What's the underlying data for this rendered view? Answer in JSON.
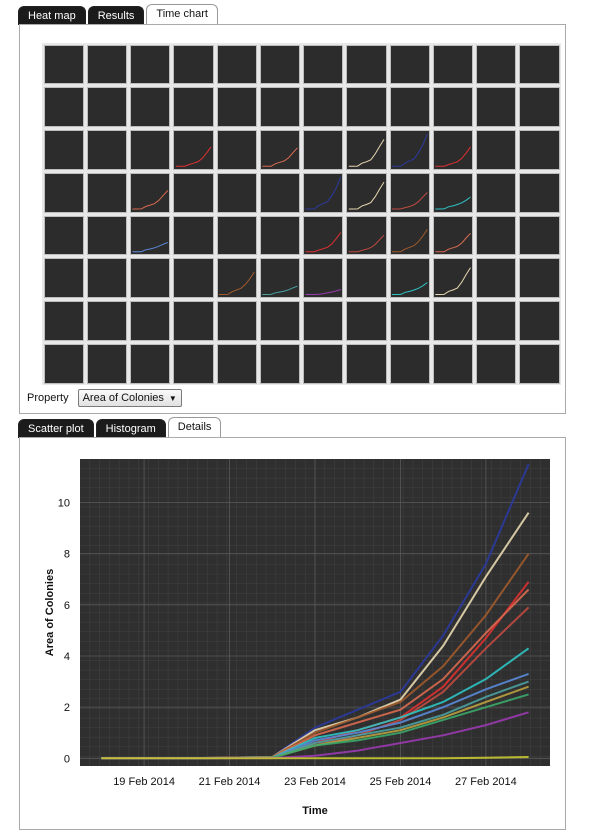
{
  "top_tabs": [
    {
      "label": "Heat map",
      "style": "dark"
    },
    {
      "label": "Results",
      "style": "dark"
    },
    {
      "label": "Time chart",
      "style": "light",
      "active": true
    }
  ],
  "property": {
    "label": "Property",
    "selected": "Area of Colonies"
  },
  "heatmap": {
    "rows": 8,
    "cols": 12,
    "well_color": "#2c2c2c"
  },
  "bottom_tabs": [
    {
      "label": "Scatter plot",
      "style": "dark"
    },
    {
      "label": "Histogram",
      "style": "dark"
    },
    {
      "label": "Details",
      "style": "light",
      "active": true
    }
  ],
  "chart_data": {
    "type": "line",
    "xlabel": "Time",
    "ylabel": "Area of Colonies",
    "x_ticks": [
      "19 Feb 2014",
      "21 Feb 2014",
      "23 Feb 2014",
      "25 Feb 2014",
      "27 Feb 2014"
    ],
    "y_ticks": [
      "0",
      "2",
      "4",
      "6",
      "8",
      "10"
    ],
    "ylim": [
      -0.3,
      11.7
    ],
    "xlim": [
      "17 Feb 2014 12:00",
      "28 Feb 2014 12:00"
    ],
    "grid": true,
    "background": "#2f2f2f",
    "x": [
      "18 Feb 2014",
      "20 Feb 2014",
      "22 Feb 2014",
      "23 Feb 2014",
      "24 Feb 2014",
      "25 Feb 2014",
      "26 Feb 2014",
      "27 Feb 2014",
      "28 Feb 2014"
    ],
    "series": [
      {
        "color": "#2b3a9e",
        "values": [
          0,
          0,
          0.05,
          1.2,
          1.9,
          2.6,
          4.8,
          7.6,
          11.5
        ]
      },
      {
        "color": "#e8d8b0",
        "values": [
          0,
          0,
          0.05,
          1.1,
          1.6,
          2.3,
          4.4,
          7.1,
          9.6
        ]
      },
      {
        "color": "#a05a2c",
        "values": [
          0,
          0,
          0.05,
          1.0,
          1.6,
          2.2,
          3.6,
          5.6,
          8.0
        ]
      },
      {
        "color": "#e03030",
        "values": [
          0,
          0,
          0.03,
          0.6,
          1.1,
          1.6,
          2.8,
          4.7,
          6.9
        ]
      },
      {
        "color": "#d96a50",
        "values": [
          0,
          0,
          0.03,
          0.9,
          1.4,
          1.9,
          3.1,
          4.9,
          6.6
        ]
      },
      {
        "color": "#c04a40",
        "values": [
          0,
          0,
          0.03,
          0.5,
          0.9,
          1.5,
          2.6,
          4.3,
          5.9
        ]
      },
      {
        "color": "#2ec4c4",
        "values": [
          0,
          0,
          0.03,
          0.8,
          1.1,
          1.6,
          2.2,
          3.1,
          4.3
        ]
      },
      {
        "color": "#5a8ad8",
        "values": [
          0,
          0,
          0.02,
          0.7,
          1.0,
          1.4,
          2.0,
          2.7,
          3.3
        ]
      },
      {
        "color": "#4aa0a0",
        "values": [
          0,
          0,
          0.02,
          0.6,
          0.9,
          1.2,
          1.7,
          2.4,
          3.0
        ]
      },
      {
        "color": "#b8a040",
        "values": [
          0,
          0,
          0.02,
          0.5,
          0.8,
          1.1,
          1.6,
          2.2,
          2.8
        ]
      },
      {
        "color": "#3aa86a",
        "values": [
          0,
          0,
          0.02,
          0.5,
          0.7,
          1.0,
          1.5,
          2.0,
          2.5
        ]
      },
      {
        "color": "#9a3ab0",
        "values": [
          0,
          0,
          0.01,
          0.1,
          0.3,
          0.6,
          0.9,
          1.3,
          1.8
        ]
      },
      {
        "color": "#c8c830",
        "values": [
          0,
          0,
          0,
          0,
          0,
          0,
          0,
          0.02,
          0.05
        ]
      }
    ]
  }
}
